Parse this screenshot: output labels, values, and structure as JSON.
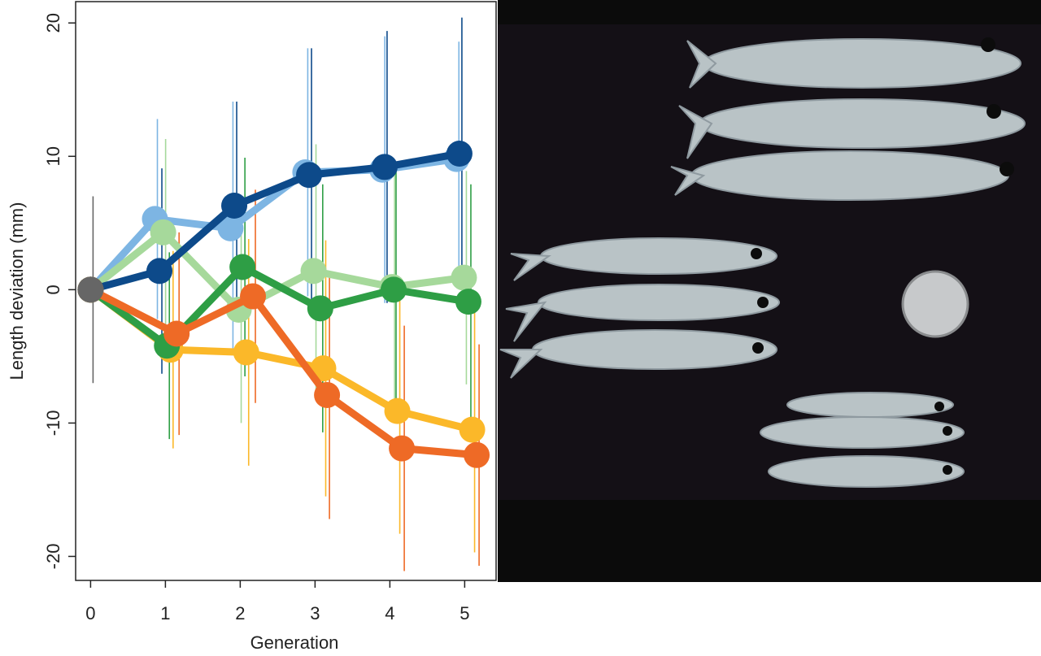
{
  "chart_data": {
    "type": "line",
    "x_label": "Generation",
    "y_label": "Length deviation (mm)",
    "xlim": [
      -0.2,
      5.42
    ],
    "ylim": [
      -21.8,
      21.6
    ],
    "xticks": [
      0,
      1,
      2,
      3,
      4,
      5
    ],
    "yticks": [
      -20,
      -10,
      0,
      10,
      20
    ],
    "series": [
      {
        "color": "#7db5e3",
        "x": [
          0,
          0.86,
          1.87,
          2.87,
          3.9,
          4.89
        ],
        "values": [
          0,
          5.3,
          4.6,
          8.8,
          9.0,
          9.8
        ],
        "errors": [
          null,
          7.5,
          9.5,
          9.3,
          10,
          8.8
        ]
      },
      {
        "color": "#a6d99b",
        "x": [
          0,
          0.97,
          1.98,
          2.98,
          4.03,
          4.99
        ],
        "values": [
          0,
          4.3,
          -1.5,
          1.4,
          0.2,
          0.9
        ],
        "errors": [
          null,
          7,
          8.5,
          9.5,
          9,
          8
        ]
      },
      {
        "color": "#fbb829",
        "x": [
          0,
          1.07,
          2.08,
          3.11,
          4.1,
          5.1
        ],
        "values": [
          0,
          -4.5,
          -4.7,
          -5.9,
          -9.1,
          -10.5
        ],
        "errors": [
          null,
          7.4,
          8.5,
          9.6,
          9.2,
          9.2
        ]
      },
      {
        "color": "#0d4a8a",
        "x": [
          0,
          0.92,
          1.92,
          2.92,
          3.93,
          4.93
        ],
        "values": [
          0,
          1.4,
          6.3,
          8.6,
          9.2,
          10.2
        ],
        "errors": [
          null,
          7.7,
          7.8,
          9.5,
          10.2,
          10.2
        ]
      },
      {
        "color": "#2e9e45",
        "x": [
          0,
          1.02,
          2.03,
          3.07,
          4.05,
          5.05
        ],
        "values": [
          0,
          -4.2,
          1.7,
          -1.4,
          0,
          -0.9
        ],
        "errors": [
          null,
          7,
          8.2,
          9.3,
          9,
          8.8
        ]
      },
      {
        "color": "#ee6a26",
        "x": [
          0,
          1.15,
          2.17,
          3.16,
          4.16,
          5.16
        ],
        "values": [
          0,
          -3.3,
          -0.5,
          -7.9,
          -11.9,
          -12.4
        ],
        "errors": [
          null,
          7.6,
          8,
          9.3,
          9.2,
          8.3
        ]
      },
      {
        "color": "#666666",
        "x": [
          0
        ],
        "values": [
          0
        ],
        "errors": [
          7
        ]
      }
    ]
  }
}
